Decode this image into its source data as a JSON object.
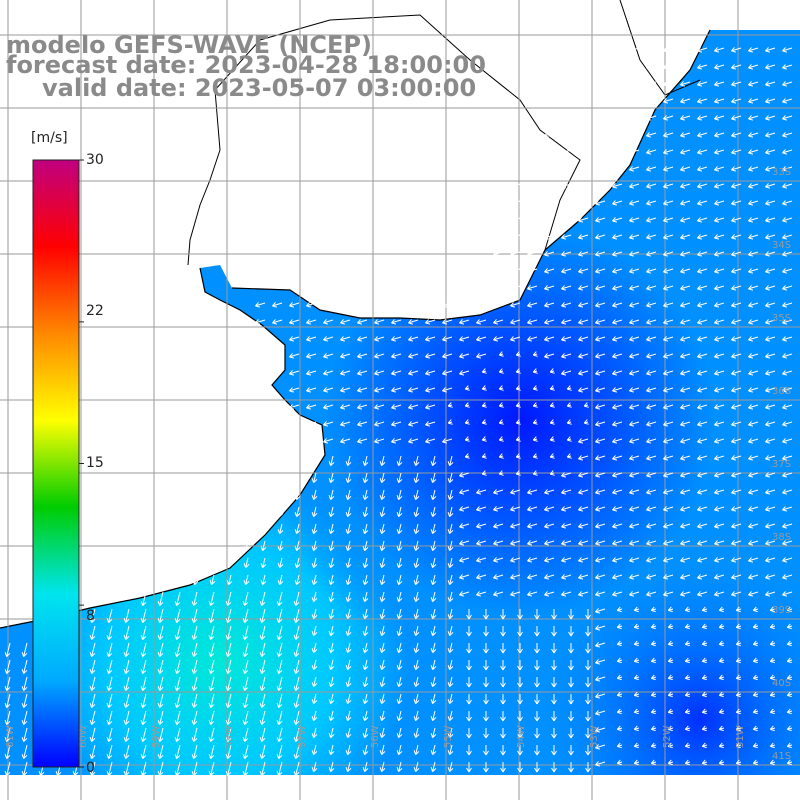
{
  "title": {
    "line1": "modelo GEFS-WAVE (NCEP)",
    "line2": "forecast date: 2023-04-28 18:00:00",
    "line3": "valid date: 2023-05-07 03:00:00"
  },
  "colorbar": {
    "unit": "[m/s]",
    "min": 0,
    "max": 30,
    "tick_labels": [
      "30",
      "22",
      "15",
      "8",
      "0"
    ],
    "tick_values": [
      30,
      22,
      15,
      8,
      0
    ],
    "colors": [
      "#0000ff",
      "#00aaff",
      "#00e5ee",
      "#00cc00",
      "#ffff00",
      "#ff8800",
      "#ff0000",
      "#c00080"
    ]
  },
  "map": {
    "longitude_labels": [
      "61W",
      "60W",
      "59W",
      "58W",
      "57W",
      "56W",
      "55W",
      "54W",
      "53W",
      "52W",
      "51W"
    ],
    "latitude_labels": [
      "33S",
      "34S",
      "35S",
      "36S",
      "37S",
      "38S",
      "39S",
      "40S",
      "41S"
    ],
    "field": "wind speed with direction arrows",
    "ocean_colors": [
      "#0018ff",
      "#0090ff",
      "#00c8ff",
      "#00e8d8"
    ],
    "land_color": "#ffffff",
    "grid_color": "#9a9a9a",
    "coastline_color": "#000000",
    "arrow_color": "#ffffff"
  }
}
